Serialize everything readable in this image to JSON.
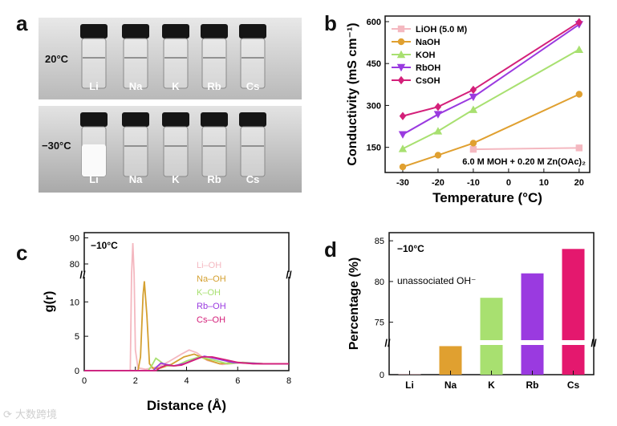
{
  "panels": {
    "a": "a",
    "b": "b",
    "c": "c",
    "d": "d"
  },
  "photos": [
    {
      "temperature": "20°C",
      "vials": [
        "Li",
        "Na",
        "K",
        "Rb",
        "Cs"
      ]
    },
    {
      "temperature": "−30°C",
      "vials": [
        "Li",
        "Na",
        "K",
        "Rb",
        "Cs"
      ]
    }
  ],
  "watermark": "大数跨境",
  "chart_data": [
    {
      "id": "b",
      "type": "line",
      "xlabel": "Temperature (°C)",
      "ylabel": "Conductivity (mS cm⁻¹)",
      "x": [
        -30,
        -20,
        -10,
        0,
        10,
        20
      ],
      "xlim": [
        -35,
        23
      ],
      "ylim": [
        60,
        620
      ],
      "yticks": [
        150,
        300,
        450,
        600
      ],
      "xticks": [
        -30,
        -20,
        -10,
        0,
        10,
        20
      ],
      "annotation": "6.0 M MOH + 0.20 M Zn(OAc)₂",
      "series": [
        {
          "name": "LiOH (5.0 M)",
          "color": "#f4b8c0",
          "marker": "square",
          "x": [
            -10,
            20
          ],
          "values": [
            143,
            148
          ]
        },
        {
          "name": "NaOH",
          "color": "#e0a030",
          "marker": "circle",
          "x": [
            -30,
            -20,
            -10,
            20
          ],
          "values": [
            80,
            122,
            165,
            340
          ]
        },
        {
          "name": "KOH",
          "color": "#a8e070",
          "marker": "triangle",
          "x": [
            -30,
            -20,
            -10,
            20
          ],
          "values": [
            145,
            208,
            285,
            500
          ]
        },
        {
          "name": "RbOH",
          "color": "#9a3ae0",
          "marker": "tri-down",
          "x": [
            -30,
            -20,
            -10,
            20
          ],
          "values": [
            196,
            268,
            330,
            590
          ]
        },
        {
          "name": "CsOH",
          "color": "#d4207a",
          "marker": "diamond",
          "x": [
            -30,
            -20,
            -10,
            20
          ],
          "values": [
            262,
            295,
            356,
            598
          ]
        }
      ]
    },
    {
      "id": "c",
      "type": "line",
      "title": "−10°C",
      "xlabel": "Distance (Å)",
      "ylabel": "g(r)",
      "xlim": [
        0,
        8
      ],
      "xticks": [
        0,
        2,
        4,
        6,
        8
      ],
      "yticks_lower": [
        0,
        5,
        10
      ],
      "yticks_upper": [
        80,
        90
      ],
      "series": [
        {
          "name": "Li–OH",
          "color": "#f4b8c0",
          "x": [
            0,
            1.7,
            1.8,
            1.85,
            1.9,
            1.95,
            2.0,
            2.1,
            2.4,
            2.9,
            3.3,
            3.8,
            4.1,
            4.4,
            4.8,
            5.4,
            6,
            7,
            8
          ],
          "values": [
            0,
            0,
            0,
            20,
            88,
            30,
            3,
            0.4,
            0.2,
            0.6,
            1.3,
            2.4,
            3.0,
            2.6,
            1.5,
            0.9,
            1.1,
            1.0,
            1.0
          ]
        },
        {
          "name": "Na–OH",
          "color": "#d4a030",
          "x": [
            0,
            2.1,
            2.2,
            2.3,
            2.35,
            2.45,
            2.55,
            2.7,
            3.0,
            3.4,
            3.9,
            4.3,
            4.8,
            5.3,
            6,
            7,
            8
          ],
          "values": [
            0,
            0,
            2,
            11,
            13,
            8,
            1,
            0.3,
            0.4,
            0.9,
            2.0,
            2.4,
            1.6,
            1.0,
            1.2,
            1.0,
            1.0
          ]
        },
        {
          "name": "K–OH",
          "color": "#a8e070",
          "x": [
            0,
            2.5,
            2.65,
            2.8,
            2.95,
            3.2,
            3.6,
            4.0,
            4.5,
            5.0,
            5.6,
            6.2,
            7,
            8
          ],
          "values": [
            0,
            0,
            0.8,
            1.8,
            1.4,
            0.7,
            0.7,
            1.4,
            2.0,
            1.6,
            1.0,
            1.2,
            1.0,
            1.0
          ]
        },
        {
          "name": "Rb–OH",
          "color": "#9a3ae0",
          "x": [
            0,
            2.7,
            2.85,
            3.0,
            3.2,
            3.5,
            3.9,
            4.3,
            4.7,
            5.2,
            5.8,
            6.4,
            7,
            8
          ],
          "values": [
            0,
            0,
            0.6,
            1.1,
            0.9,
            0.7,
            1.0,
            1.6,
            2.1,
            1.7,
            1.2,
            1.1,
            1.0,
            1.0
          ]
        },
        {
          "name": "Cs–OH",
          "color": "#d4207a",
          "x": [
            0,
            2.8,
            3.0,
            3.2,
            3.5,
            3.8,
            4.2,
            4.6,
            5.0,
            5.5,
            6.0,
            6.6,
            7.2,
            8
          ],
          "values": [
            0,
            0,
            0.5,
            0.8,
            0.7,
            0.8,
            1.4,
            2.0,
            2.0,
            1.6,
            1.2,
            1.0,
            1.0,
            1.0
          ]
        }
      ]
    },
    {
      "id": "d",
      "type": "bar",
      "title": "−10°C",
      "annotation": "unassociated OH⁻",
      "ylabel": "Percentage (%)",
      "categories": [
        "Li",
        "Na",
        "K",
        "Rb",
        "Cs"
      ],
      "values": [
        0.5,
        40,
        78,
        81,
        84
      ],
      "colors": [
        "#f4b8c0",
        "#e0a030",
        "#a8e070",
        "#9a3ae0",
        "#e4186e"
      ],
      "yticks_lower": [
        0
      ],
      "yticks_upper": [
        75,
        80,
        85
      ]
    }
  ]
}
